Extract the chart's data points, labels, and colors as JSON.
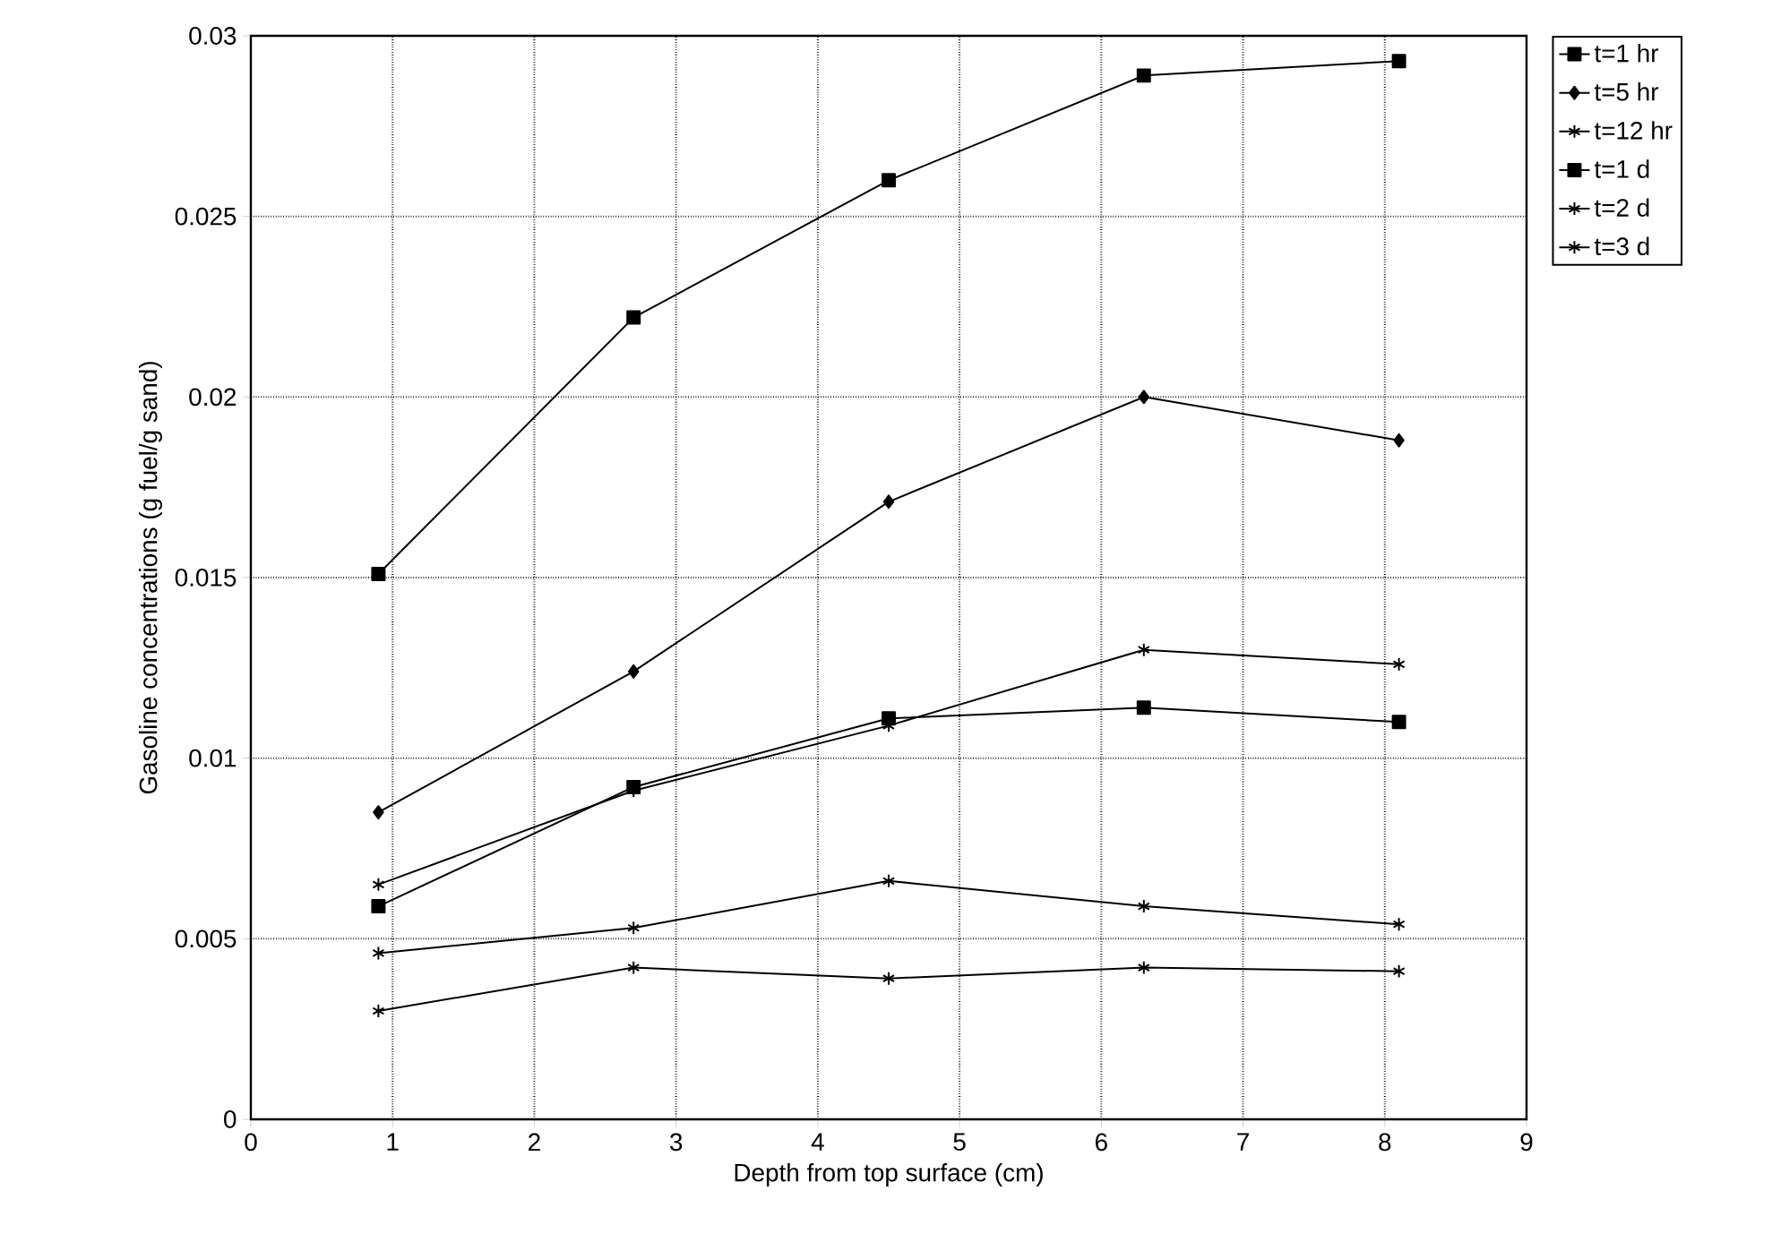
{
  "chart_data": {
    "type": "line",
    "xlabel": "Depth from top surface (cm)",
    "ylabel": "Gasoline concentrations (g fuel/g sand)",
    "x": [
      0.9,
      2.7,
      4.5,
      6.3,
      8.1
    ],
    "series": [
      {
        "name": "t=1 hr",
        "color": "#000000",
        "marker": "square",
        "values": [
          0.0151,
          0.0222,
          0.026,
          0.0289,
          0.0293
        ]
      },
      {
        "name": "t=5 hr",
        "color": "#000000",
        "marker": "diamond",
        "values": [
          0.0085,
          0.0124,
          0.0171,
          0.02,
          0.0188
        ]
      },
      {
        "name": "t=12 hr",
        "color": "#000000",
        "marker": "cross",
        "values": [
          0.0065,
          0.0091,
          0.0109,
          0.013,
          0.0126
        ]
      },
      {
        "name": "t=1 d",
        "color": "#000000",
        "marker": "square",
        "values": [
          0.0059,
          0.0092,
          0.0111,
          0.0114,
          0.011
        ]
      },
      {
        "name": "t=2 d",
        "color": "#000000",
        "marker": "cross",
        "values": [
          0.0046,
          0.0053,
          0.0066,
          0.0059,
          0.0054
        ]
      },
      {
        "name": "t=3 d",
        "color": "#000000",
        "marker": "cross",
        "values": [
          0.003,
          0.0042,
          0.0039,
          0.0042,
          0.0041
        ]
      }
    ],
    "xlim": [
      0,
      9
    ],
    "xticks": [
      0,
      1,
      2,
      3,
      4,
      5,
      6,
      7,
      8,
      9
    ],
    "ylim": [
      0,
      0.03
    ],
    "yticks": [
      0,
      0.005,
      0.01,
      0.015,
      0.02,
      0.025,
      0.03
    ],
    "grid": true,
    "legend": "right",
    "line_style": "solid"
  }
}
